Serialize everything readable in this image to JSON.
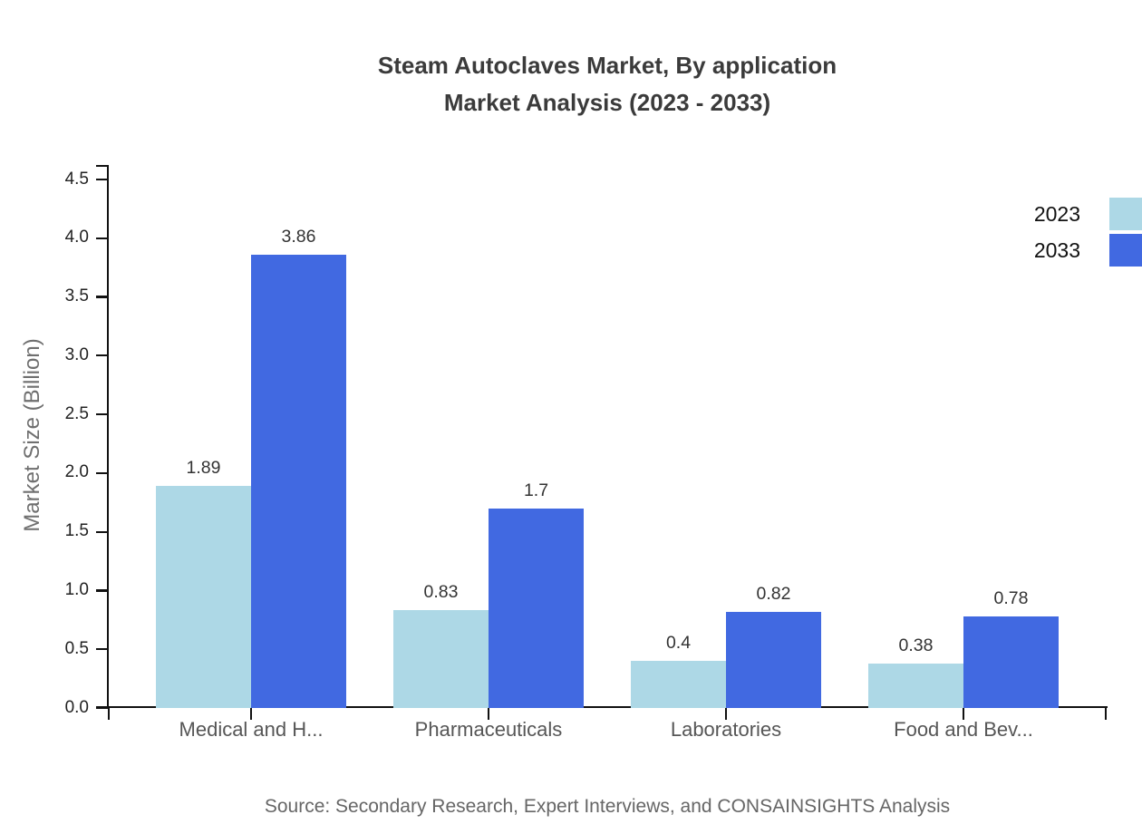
{
  "chart_data": {
    "type": "bar",
    "title": "Steam Autoclaves Market, By application",
    "subtitle": "Market Analysis (2023 - 2033)",
    "ylabel": "Market Size (Billion)",
    "xlabel": "",
    "categories": [
      "Medical and H...",
      "Pharmaceuticals",
      "Laboratories",
      "Food and Bev..."
    ],
    "series": [
      {
        "name": "2023",
        "color": "#ADD8E6",
        "values": [
          1.89,
          0.83,
          0.4,
          0.38
        ]
      },
      {
        "name": "2033",
        "color": "#4169E1",
        "values": [
          3.86,
          1.7,
          0.82,
          0.78
        ]
      }
    ],
    "value_labels": [
      "1.89",
      "3.86",
      "0.83",
      "1.7",
      "0.4",
      "0.82",
      "0.38",
      "0.78"
    ],
    "ylim": [
      0,
      4.5
    ],
    "yticks": [
      0.0,
      0.5,
      1.0,
      1.5,
      2.0,
      2.5,
      3.0,
      3.5,
      4.0,
      4.5
    ],
    "ytick_labels": [
      "0.0",
      "0.5",
      "1.0",
      "1.5",
      "2.0",
      "2.5",
      "3.0",
      "3.5",
      "4.0",
      "4.5"
    ],
    "grid": false,
    "legend_position": "top-right"
  },
  "source_note": "Source: Secondary Research, Expert Interviews, and CONSAINSIGHTS Analysis",
  "colors": {
    "series_2023": "#ADD8E6",
    "series_2033": "#4169E1",
    "axis": "#111111",
    "title_text": "#3b3b3b",
    "category_text": "#565656",
    "value_text": "#333333",
    "muted_text": "#666666"
  }
}
